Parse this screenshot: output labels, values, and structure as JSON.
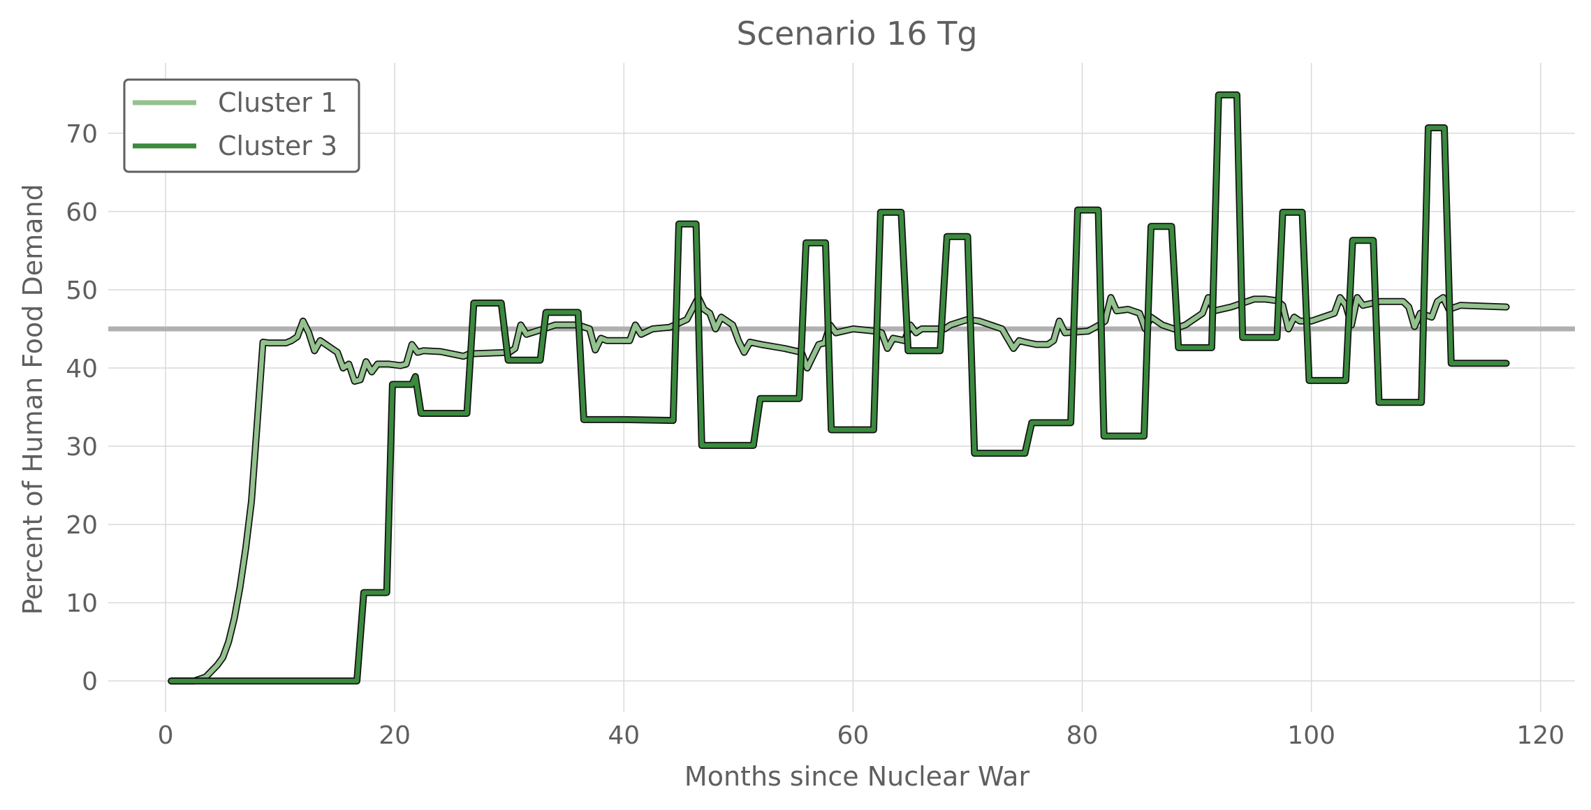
{
  "chart_data": {
    "type": "line",
    "title": "Scenario 16 Tg",
    "xlabel": "Months since Nuclear War",
    "ylabel": "Percent of Human Food Demand",
    "xlim": [
      -5,
      123
    ],
    "ylim": [
      -4,
      79
    ],
    "xticks": [
      0,
      20,
      40,
      60,
      80,
      100,
      120
    ],
    "yticks": [
      0,
      10,
      20,
      30,
      40,
      50,
      60,
      70
    ],
    "grid": true,
    "legend": {
      "placement": "top-left"
    },
    "reference_line": {
      "y": 45,
      "color": "#b0b0b0"
    },
    "series": [
      {
        "name": "Cluster 1",
        "color": "#94c28f",
        "points": [
          [
            0.5,
            0
          ],
          [
            2.5,
            0
          ],
          [
            3.5,
            0.5
          ],
          [
            4.5,
            2
          ],
          [
            5,
            3
          ],
          [
            5.5,
            5
          ],
          [
            6,
            8
          ],
          [
            6.5,
            12
          ],
          [
            7,
            17
          ],
          [
            7.5,
            23
          ],
          [
            8,
            33
          ],
          [
            8.5,
            43.3
          ],
          [
            9,
            43.2
          ],
          [
            10.5,
            43.2
          ],
          [
            11,
            43.5
          ],
          [
            11.5,
            44
          ],
          [
            12,
            46
          ],
          [
            12.5,
            44.5
          ],
          [
            13,
            42.2
          ],
          [
            13.5,
            43.5
          ],
          [
            14,
            43
          ],
          [
            15,
            42
          ],
          [
            15.5,
            40
          ],
          [
            16,
            40.5
          ],
          [
            16.5,
            38.3
          ],
          [
            17,
            38.5
          ],
          [
            17.5,
            40.8
          ],
          [
            18,
            39.5
          ],
          [
            18.5,
            40.5
          ],
          [
            19.5,
            40.5
          ],
          [
            20.5,
            40.3
          ],
          [
            21,
            40.5
          ],
          [
            21.5,
            43
          ],
          [
            22,
            42
          ],
          [
            22.5,
            42.2
          ],
          [
            24,
            42.1
          ],
          [
            25,
            41.8
          ],
          [
            26,
            41.5
          ],
          [
            26.5,
            41.8
          ],
          [
            30,
            42
          ],
          [
            30.5,
            42.5
          ],
          [
            31,
            45.5
          ],
          [
            31.5,
            44.3
          ],
          [
            33,
            45
          ],
          [
            34,
            45.5
          ],
          [
            36,
            45.5
          ],
          [
            37,
            45
          ],
          [
            37.5,
            42.3
          ],
          [
            38,
            43.8
          ],
          [
            38.5,
            43.5
          ],
          [
            40.5,
            43.5
          ],
          [
            41,
            45.5
          ],
          [
            41.5,
            44.3
          ],
          [
            42.5,
            45
          ],
          [
            44,
            45.2
          ],
          [
            45.5,
            46.2
          ],
          [
            46.5,
            49
          ],
          [
            47,
            47.5
          ],
          [
            47.5,
            47
          ],
          [
            48,
            45
          ],
          [
            48.5,
            46.5
          ],
          [
            49.5,
            45.5
          ],
          [
            50,
            43.5
          ],
          [
            50.5,
            42
          ],
          [
            51,
            43.3
          ],
          [
            52,
            43
          ],
          [
            54,
            42.5
          ],
          [
            55.5,
            42
          ],
          [
            56,
            40
          ],
          [
            56.5,
            41.5
          ],
          [
            57,
            43
          ],
          [
            57.5,
            43.2
          ],
          [
            58,
            45.5
          ],
          [
            58.5,
            44.5
          ],
          [
            60,
            45
          ],
          [
            62,
            44.7
          ],
          [
            62.5,
            44.5
          ],
          [
            63,
            42.5
          ],
          [
            63.5,
            43.8
          ],
          [
            64.5,
            43.5
          ],
          [
            65,
            45.5
          ],
          [
            65.5,
            44.5
          ],
          [
            66,
            45
          ],
          [
            68,
            45
          ],
          [
            68.5,
            45.5
          ],
          [
            70,
            46.2
          ],
          [
            71,
            46
          ],
          [
            72,
            45.5
          ],
          [
            73,
            45
          ],
          [
            74,
            42.5
          ],
          [
            74.5,
            43.5
          ],
          [
            75,
            43.3
          ],
          [
            76,
            43
          ],
          [
            77,
            43
          ],
          [
            77.5,
            43.5
          ],
          [
            78,
            46
          ],
          [
            78.5,
            44.5
          ],
          [
            80.5,
            44.7
          ],
          [
            81.5,
            45.5
          ],
          [
            82,
            46
          ],
          [
            82.5,
            49
          ],
          [
            83,
            47.3
          ],
          [
            84,
            47.5
          ],
          [
            85,
            47
          ],
          [
            85.5,
            45
          ],
          [
            86,
            46.5
          ],
          [
            87,
            45.5
          ],
          [
            88,
            45
          ],
          [
            89,
            45.5
          ],
          [
            90,
            46.5
          ],
          [
            90.5,
            47
          ],
          [
            91,
            49
          ],
          [
            91.5,
            47.3
          ],
          [
            93,
            47.8
          ],
          [
            94,
            48.3
          ],
          [
            95,
            48.8
          ],
          [
            96,
            48.8
          ],
          [
            97,
            48.6
          ],
          [
            97.5,
            48
          ],
          [
            98,
            45
          ],
          [
            98.5,
            46.5
          ],
          [
            99,
            46
          ],
          [
            100,
            46
          ],
          [
            101,
            46.5
          ],
          [
            102,
            47
          ],
          [
            102.5,
            49
          ],
          [
            103,
            48
          ],
          [
            103.5,
            45.5
          ],
          [
            104,
            49
          ],
          [
            104.5,
            48
          ],
          [
            106,
            48.5
          ],
          [
            108,
            48.5
          ],
          [
            108.5,
            47.8
          ],
          [
            109,
            45.3
          ],
          [
            109.5,
            47
          ],
          [
            110.5,
            46.5
          ],
          [
            111,
            48.5
          ],
          [
            111.5,
            49
          ],
          [
            112,
            47.5
          ],
          [
            113,
            48
          ],
          [
            117,
            47.8
          ]
        ]
      },
      {
        "name": "Cluster 3",
        "color": "#3b8a3e",
        "points": [
          [
            0.5,
            0
          ],
          [
            16.7,
            0
          ],
          [
            17.3,
            11.3
          ],
          [
            19.3,
            11.3
          ],
          [
            19.8,
            37.9
          ],
          [
            21.5,
            37.9
          ],
          [
            21.8,
            38.9
          ],
          [
            22.3,
            34.2
          ],
          [
            26.3,
            34.2
          ],
          [
            26.9,
            48.3
          ],
          [
            29.3,
            48.3
          ],
          [
            29.9,
            41
          ],
          [
            32.7,
            41
          ],
          [
            33.2,
            47.1
          ],
          [
            36,
            47.1
          ],
          [
            36.5,
            33.4
          ],
          [
            40,
            33.4
          ],
          [
            44.3,
            33.3
          ],
          [
            44.8,
            58.4
          ],
          [
            46.3,
            58.4
          ],
          [
            46.8,
            30.1
          ],
          [
            51.3,
            30.1
          ],
          [
            51.9,
            36.1
          ],
          [
            55.3,
            36.1
          ],
          [
            55.9,
            56
          ],
          [
            57.6,
            56
          ],
          [
            58.1,
            32.1
          ],
          [
            61.8,
            32.1
          ],
          [
            62.4,
            59.9
          ],
          [
            64.2,
            59.9
          ],
          [
            64.8,
            42.2
          ],
          [
            67.6,
            42.2
          ],
          [
            68.2,
            56.8
          ],
          [
            70,
            56.8
          ],
          [
            70.6,
            29.1
          ],
          [
            75,
            29.1
          ],
          [
            75.6,
            33
          ],
          [
            79,
            33
          ],
          [
            79.6,
            60.2
          ],
          [
            81.4,
            60.2
          ],
          [
            81.9,
            31.3
          ],
          [
            85.4,
            31.3
          ],
          [
            86,
            58.1
          ],
          [
            87.8,
            58.1
          ],
          [
            88.4,
            42.6
          ],
          [
            91.3,
            42.6
          ],
          [
            91.9,
            74.9
          ],
          [
            93.5,
            74.9
          ],
          [
            94,
            43.9
          ],
          [
            97,
            43.9
          ],
          [
            97.5,
            59.9
          ],
          [
            99.2,
            59.9
          ],
          [
            99.8,
            38.4
          ],
          [
            103,
            38.4
          ],
          [
            103.6,
            56.3
          ],
          [
            105.4,
            56.3
          ],
          [
            105.9,
            35.6
          ],
          [
            109.6,
            35.6
          ],
          [
            110.2,
            70.7
          ],
          [
            111.6,
            70.7
          ],
          [
            112.2,
            40.6
          ],
          [
            116,
            40.6
          ],
          [
            117,
            40.6
          ]
        ]
      }
    ]
  }
}
